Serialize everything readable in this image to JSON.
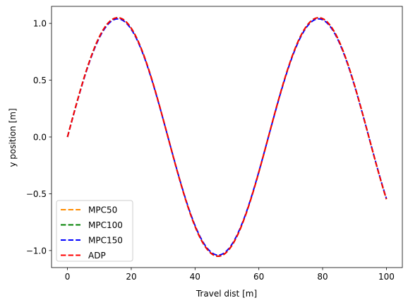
{
  "chart_data": {
    "type": "line",
    "xlabel": "Travel dist [m]",
    "ylabel": "y position [m]",
    "xlim": [
      -5,
      105
    ],
    "ylim": [
      -1.15,
      1.15
    ],
    "xticks": [
      0,
      20,
      40,
      60,
      80,
      100
    ],
    "yticks": [
      -1.0,
      -0.5,
      0.0,
      0.5,
      1.0
    ],
    "xtick_labels": [
      "0",
      "20",
      "40",
      "60",
      "80",
      "100"
    ],
    "ytick_labels": [
      "−1.0",
      "−0.5",
      "0.0",
      "0.5",
      "1.0"
    ],
    "grid": false,
    "legend_position": "lower-left",
    "series": [
      {
        "name": "MPC50",
        "color": "#ff8c00",
        "dash": "dashed",
        "fn": {
          "amp": 1.05,
          "period": 63,
          "x_start": 0,
          "x_end": 100,
          "step": 0.5
        }
      },
      {
        "name": "MPC100",
        "color": "#008000",
        "dash": "dashed",
        "fn": {
          "amp": 1.05,
          "period": 63,
          "x_start": 0,
          "x_end": 100,
          "step": 0.5
        }
      },
      {
        "name": "MPC150",
        "color": "#0000ff",
        "dash": "dashed",
        "fn": {
          "amp": 1.04,
          "period": 63,
          "x_start": 0,
          "x_end": 100,
          "step": 0.5
        }
      },
      {
        "name": "ADP",
        "color": "#ff0000",
        "dash": "dashed",
        "fn": {
          "amp": 1.05,
          "period": 63,
          "x_start": 0,
          "x_end": 100,
          "step": 0.5
        }
      }
    ]
  }
}
